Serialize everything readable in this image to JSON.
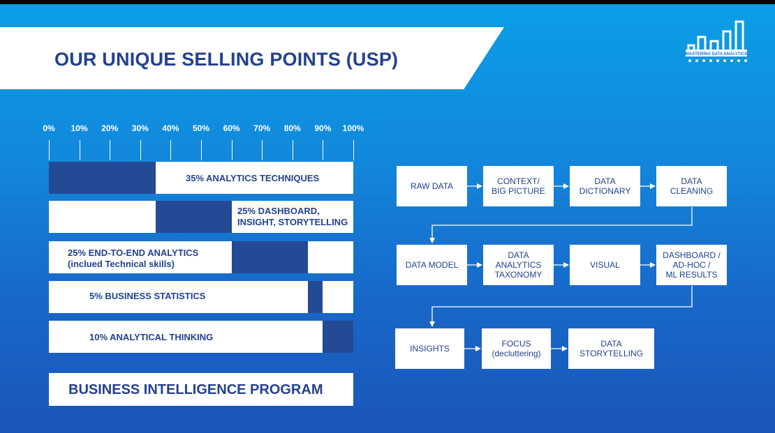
{
  "slide": {
    "title": "OUR UNIQUE SELLING POINTS (USP)",
    "logo_text": "MASTERING DATA ANALYTICS",
    "background_colors": [
      "#0a9fe6",
      "#1a56b8"
    ],
    "accent_color": "#244a96",
    "text_color": "#23418f"
  },
  "scale": {
    "ticks": [
      "0%",
      "10%",
      "20%",
      "30%",
      "40%",
      "50%",
      "60%",
      "70%",
      "80%",
      "90%",
      "100%"
    ]
  },
  "chart_data": {
    "type": "bar",
    "categories": [
      "35% ANALYTICS TECHNIQUES",
      "25% DASHBOARD, INSIGHT, STORYTELLING",
      "25% END-TO-END ANALYTICS (inclued Technical skills)",
      "5% BUSINESS STATISTICS",
      "10% ANALYTICAL THINKING"
    ],
    "series": [
      {
        "values": [
          35,
          25,
          25,
          5,
          10
        ],
        "start": [
          0,
          35,
          60,
          85,
          90
        ]
      }
    ],
    "xlim": [
      0,
      100
    ],
    "bars": [
      {
        "line1": "35% ANALYTICS TECHNIQUES",
        "line2": ""
      },
      {
        "line1": "25% DASHBOARD,",
        "line2": "INSIGHT, STORYTELLING"
      },
      {
        "line1": "25% END-TO-END ANALYTICS",
        "line2": "(inclued Technical skills)"
      },
      {
        "line1": "5% BUSINESS STATISTICS",
        "line2": ""
      },
      {
        "line1": "10% ANALYTICAL THINKING",
        "line2": ""
      }
    ],
    "footer": "BUSINESS INTELLIGENCE PROGRAM"
  },
  "flow": {
    "row1": [
      "RAW DATA",
      "CONTEXT/\nBIG PICTURE",
      "DATA\nDICTIONARY",
      "DATA\nCLEANING"
    ],
    "row2": [
      "DATA MODEL",
      "DATA\nANALYTICS\nTAXONOMY",
      "VISUAL",
      "DASHBOARD /\nAD-HOC /\nML RESULTS"
    ],
    "row3": [
      "INSIGHTS",
      "FOCUS\n(decluttering)",
      "DATA\nSTORYTELLING"
    ]
  }
}
